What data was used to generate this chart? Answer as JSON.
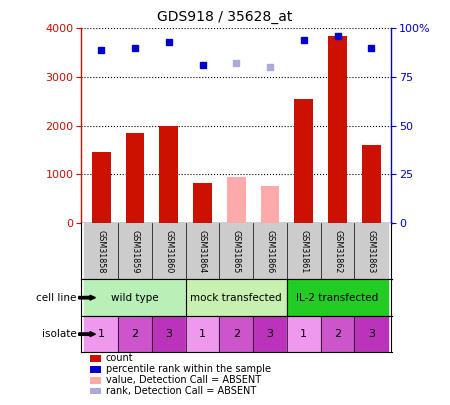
{
  "title": "GDS918 / 35628_at",
  "samples": [
    "GSM31858",
    "GSM31859",
    "GSM31860",
    "GSM31864",
    "GSM31865",
    "GSM31866",
    "GSM31861",
    "GSM31862",
    "GSM31863"
  ],
  "counts": [
    1450,
    1850,
    2000,
    820,
    950,
    750,
    2550,
    3850,
    1600
  ],
  "counts_absent": [
    false,
    false,
    false,
    false,
    true,
    true,
    false,
    false,
    false
  ],
  "percentile_ranks": [
    89,
    90,
    93,
    81,
    82,
    80,
    94,
    96,
    90
  ],
  "ranks_absent": [
    false,
    false,
    false,
    false,
    true,
    true,
    false,
    false,
    false
  ],
  "ylim_left": [
    0,
    4000
  ],
  "ylim_right": [
    0,
    100
  ],
  "yticks_left": [
    0,
    1000,
    2000,
    3000,
    4000
  ],
  "yticks_right": [
    0,
    25,
    50,
    75,
    100
  ],
  "cell_lines": [
    {
      "label": "wild type",
      "span": [
        0,
        3
      ],
      "color": "#b8f0b8"
    },
    {
      "label": "mock transfected",
      "span": [
        3,
        6
      ],
      "color": "#c8f0b0"
    },
    {
      "label": "IL-2 transfected",
      "span": [
        6,
        9
      ],
      "color": "#22cc22"
    }
  ],
  "isolate_colors": [
    "#ee88ee",
    "#dd66dd",
    "#cc44cc",
    "#ee88ee",
    "#dd66dd",
    "#cc44cc",
    "#ee88ee",
    "#dd66dd",
    "#cc44cc"
  ],
  "isolates": [
    "1",
    "2",
    "3",
    "1",
    "2",
    "3",
    "1",
    "2",
    "3"
  ],
  "bar_color_present": "#cc1100",
  "bar_color_absent": "#ffaaaa",
  "dot_color_present": "#0000cc",
  "dot_color_absent": "#aaaadd",
  "bg_color": "#ffffff",
  "label_row_bg": "#cccccc",
  "legend_items": [
    {
      "color": "#cc1100",
      "label": "count"
    },
    {
      "color": "#0000cc",
      "label": "percentile rank within the sample"
    },
    {
      "color": "#ffaaaa",
      "label": "value, Detection Call = ABSENT"
    },
    {
      "color": "#aaaadd",
      "label": "rank, Detection Call = ABSENT"
    }
  ]
}
